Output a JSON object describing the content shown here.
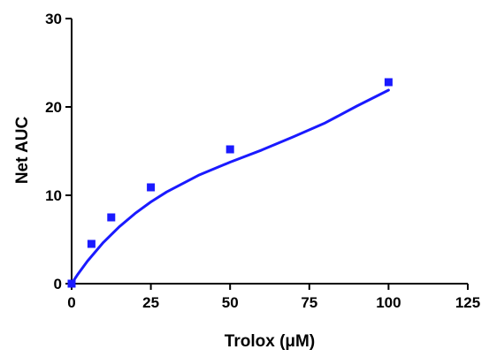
{
  "chart_data": {
    "type": "scatter",
    "title": "",
    "xlabel": "Trolox (μM)",
    "ylabel": "Net AUC",
    "xlim": [
      0,
      125
    ],
    "ylim": [
      0,
      30
    ],
    "x_ticks": [
      0,
      25,
      50,
      75,
      100,
      125
    ],
    "y_ticks": [
      0,
      10,
      20,
      30
    ],
    "x_tick_labels": [
      "0",
      "25",
      "50",
      "75",
      "100",
      "125"
    ],
    "y_tick_labels": [
      "0",
      "10",
      "20",
      "30"
    ],
    "grid": false,
    "legend": "none",
    "series": [
      {
        "kind": "points",
        "marker": "square",
        "color": "#1a1aff",
        "x": [
          0,
          6.25,
          12.5,
          25,
          50,
          100
        ],
        "y": [
          0,
          4.5,
          7.5,
          10.9,
          15.2,
          22.8
        ]
      },
      {
        "kind": "fit-curve",
        "color": "#1a1aff",
        "x": [
          0,
          2,
          5,
          10,
          15,
          20,
          25,
          30,
          40,
          50,
          60,
          70,
          80,
          90,
          100
        ],
        "y": [
          0,
          1.09,
          2.55,
          4.66,
          6.43,
          7.94,
          9.25,
          10.38,
          12.26,
          13.75,
          15.12,
          16.63,
          18.19,
          20.1,
          21.9
        ]
      }
    ]
  }
}
